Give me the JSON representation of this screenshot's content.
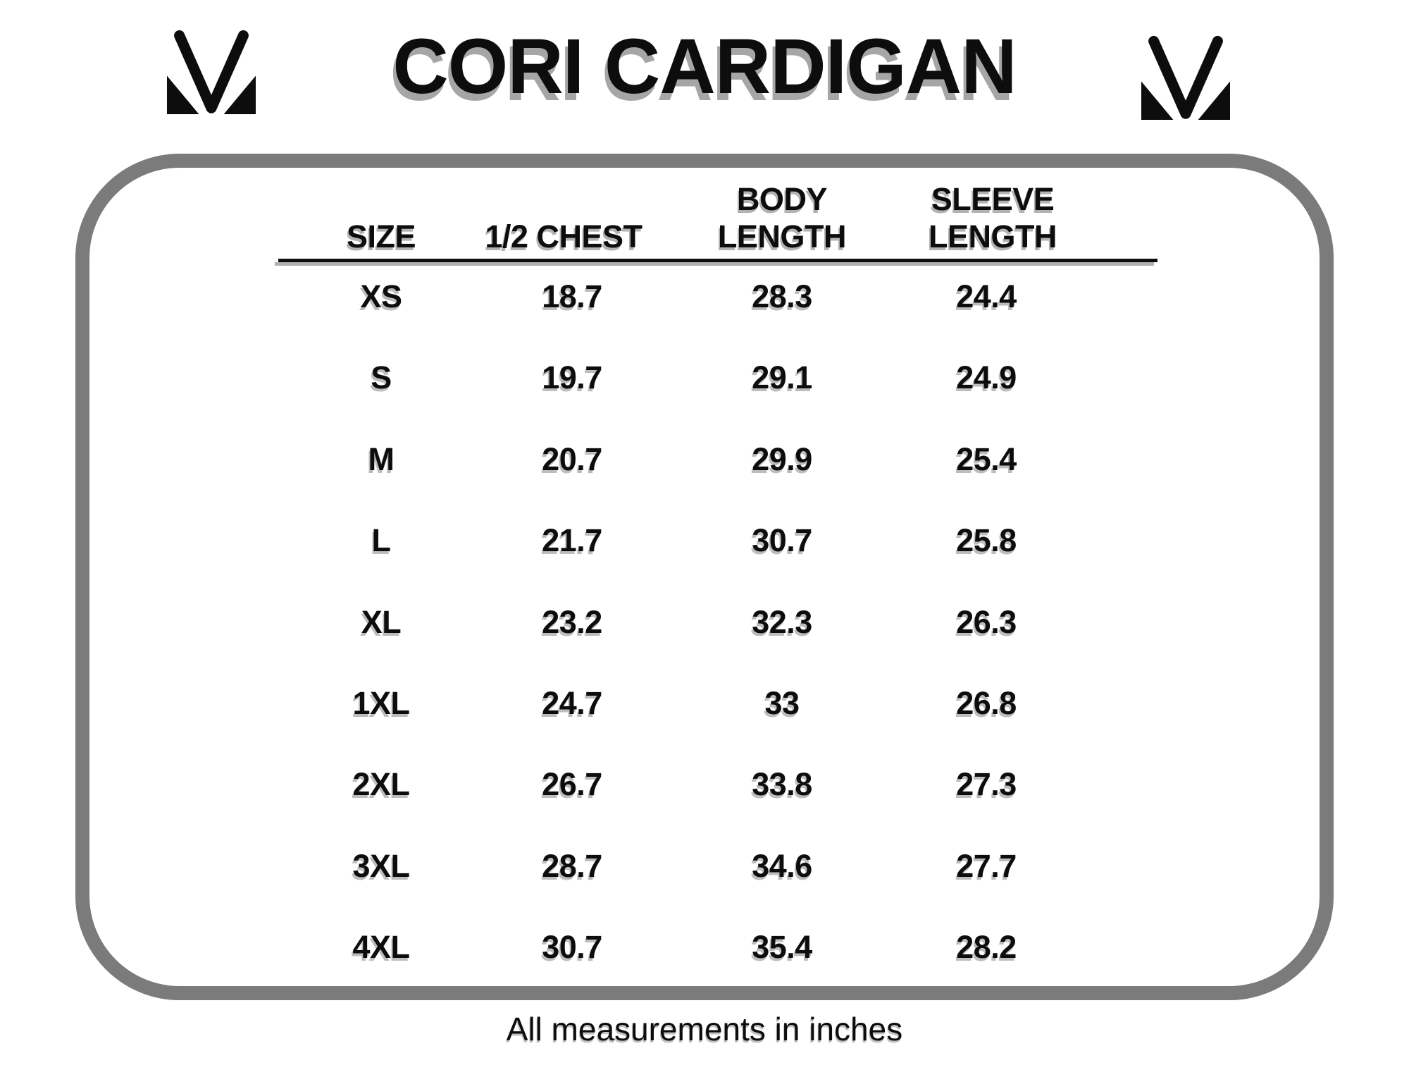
{
  "header": {
    "title": "CORI CARDIGAN"
  },
  "icons": {
    "left_logo": "m-monogram-icon",
    "right_logo": "m-monogram-icon"
  },
  "chart_data": {
    "type": "table",
    "title": "CORI CARDIGAN",
    "columns": [
      "SIZE",
      "1/2 CHEST",
      "BODY\nLENGTH",
      "SLEEVE\nLENGTH"
    ],
    "sizes": [
      "XS",
      "S",
      "M",
      "L",
      "XL",
      "1XL",
      "2XL",
      "3XL",
      "4XL"
    ],
    "series": [
      {
        "name": "1/2 CHEST",
        "values": [
          18.7,
          19.7,
          20.7,
          21.7,
          23.2,
          24.7,
          26.7,
          28.7,
          30.7
        ]
      },
      {
        "name": "BODY LENGTH",
        "values": [
          28.3,
          29.1,
          29.9,
          30.7,
          32.3,
          33,
          33.8,
          34.6,
          35.4
        ]
      },
      {
        "name": "SLEEVE LENGTH",
        "values": [
          24.4,
          24.9,
          25.4,
          25.8,
          26.3,
          26.8,
          27.3,
          27.7,
          28.2
        ]
      }
    ],
    "unit": "inches"
  },
  "footer": {
    "note": "All measurements in inches"
  },
  "colors": {
    "border_gray": "#7b7b7b",
    "text_black": "#0d0d0d",
    "shadow_gray": "#a6a6a6"
  }
}
